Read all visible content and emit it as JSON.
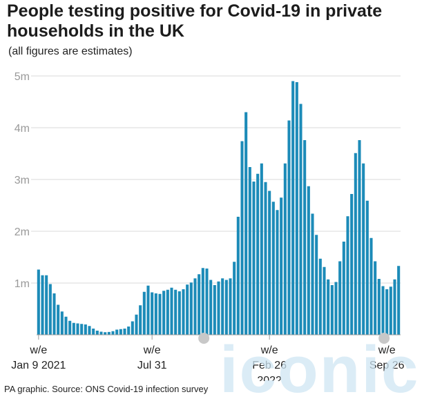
{
  "header": {
    "title": "People testing positive for Covid-19 in private households in the UK",
    "subtitle": "(all figures are estimates)"
  },
  "footer": {
    "source": "PA graphic. Source: ONS Covid-19 infection survey"
  },
  "watermark": {
    "text": "iconic",
    "color": "#cfe6f3"
  },
  "chart_data": {
    "type": "bar",
    "title": "People testing positive for Covid-19 in private households in the UK",
    "subtitle": "(all figures are estimates)",
    "xlabel": "",
    "ylabel": "",
    "ylim": [
      0,
      5000000
    ],
    "yticks": [
      {
        "value": 1000000,
        "label": "1m"
      },
      {
        "value": 2000000,
        "label": "2m"
      },
      {
        "value": 3000000,
        "label": "3m"
      },
      {
        "value": 4000000,
        "label": "4m"
      },
      {
        "value": 5000000,
        "label": "5m"
      }
    ],
    "xticks": [
      {
        "index": 0,
        "lines": [
          "w/e",
          "Jan 9 2021"
        ]
      },
      {
        "index": 29,
        "lines": [
          "w/e",
          "Jul 31"
        ]
      },
      {
        "index": 59,
        "lines": [
          "w/e",
          "Feb 26",
          "2022"
        ]
      },
      {
        "index": 89,
        "lines": [
          "w/e",
          "Sep 26"
        ]
      }
    ],
    "bar_color": "#1c8bb8",
    "grid": true,
    "period": "weekly, w/e Jan 9 2021 to w/e Sep 26 2022",
    "values": [
      1260000,
      1150000,
      1150000,
      980000,
      800000,
      580000,
      450000,
      350000,
      270000,
      230000,
      220000,
      210000,
      200000,
      170000,
      120000,
      80000,
      60000,
      50000,
      55000,
      70000,
      100000,
      110000,
      120000,
      160000,
      260000,
      390000,
      570000,
      830000,
      950000,
      820000,
      800000,
      790000,
      850000,
      870000,
      910000,
      870000,
      840000,
      880000,
      970000,
      1010000,
      1090000,
      1170000,
      1290000,
      1280000,
      1060000,
      960000,
      1030000,
      1090000,
      1060000,
      1090000,
      1410000,
      2280000,
      3740000,
      4300000,
      3240000,
      2960000,
      3110000,
      3310000,
      2950000,
      2780000,
      2570000,
      2410000,
      2650000,
      3310000,
      4140000,
      4900000,
      4880000,
      4460000,
      3760000,
      2870000,
      2340000,
      1930000,
      1470000,
      1310000,
      1070000,
      960000,
      1020000,
      1420000,
      1800000,
      2290000,
      2720000,
      3510000,
      3760000,
      3310000,
      2590000,
      1870000,
      1420000,
      1080000,
      940000,
      880000,
      930000,
      1070000,
      1330000
    ]
  }
}
